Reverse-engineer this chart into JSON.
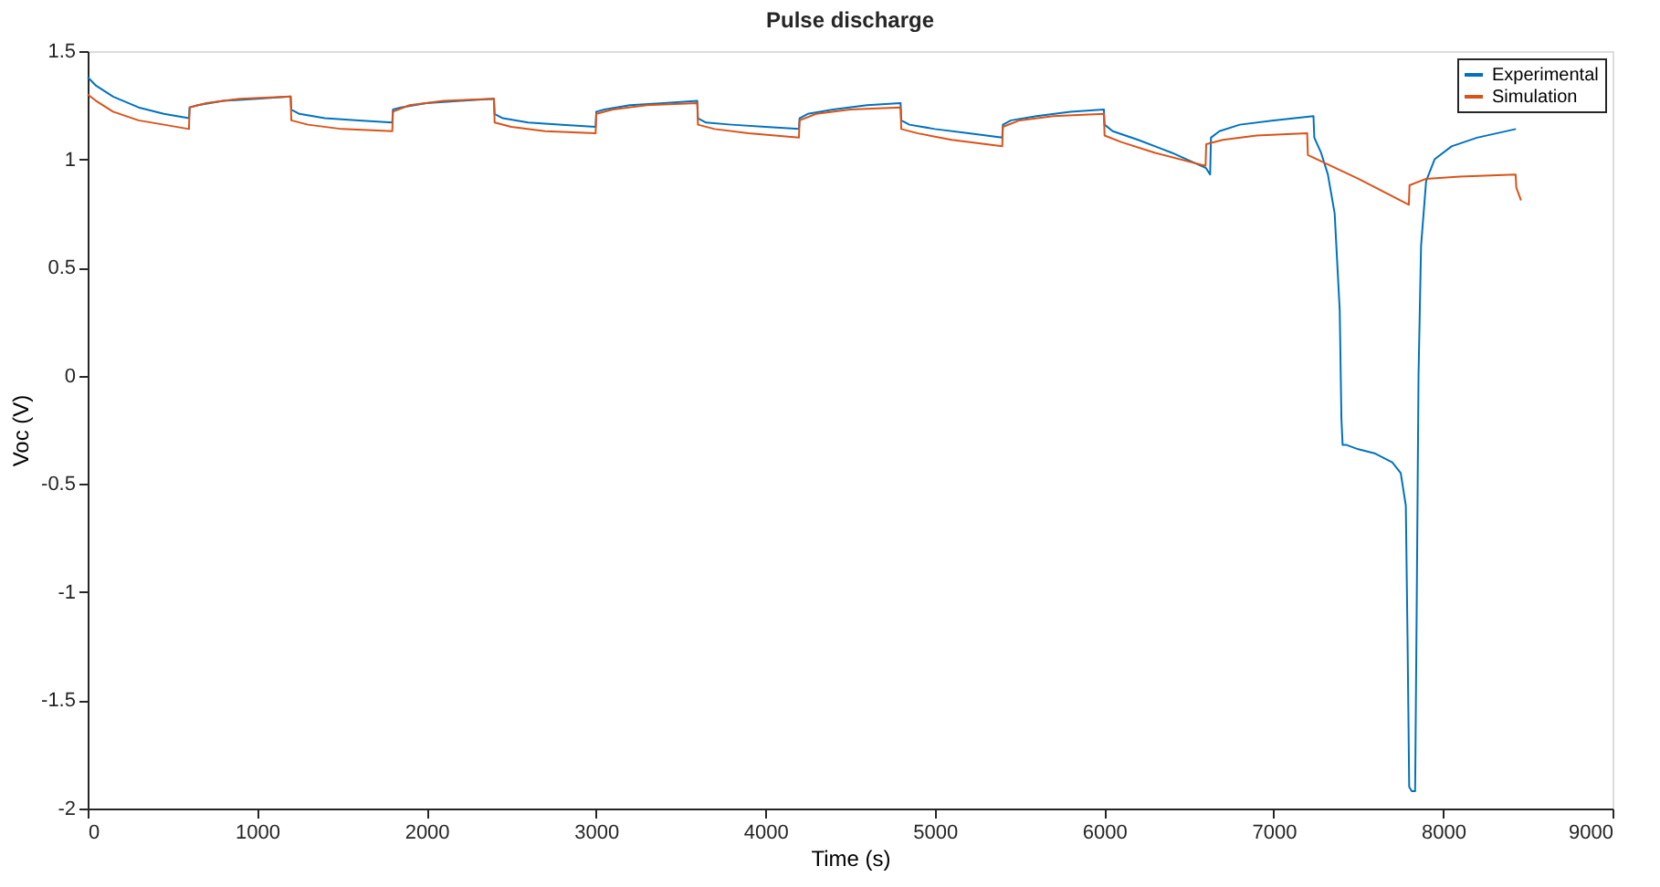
{
  "chart_data": {
    "type": "line",
    "title": "Pulse discharge",
    "xlabel": "Time (s)",
    "ylabel": "Voc (V)",
    "xlim": [
      0,
      9000
    ],
    "xticks": [
      0,
      1000,
      2000,
      3000,
      4000,
      5000,
      6000,
      7000,
      8000,
      9000
    ],
    "ylim": [
      -2,
      1.5
    ],
    "yticks": [
      -2,
      -1.5,
      -1,
      -0.5,
      0,
      0.5,
      1,
      1.5
    ],
    "grid": false,
    "legend": "top right",
    "line_style": "solid",
    "marker": "none",
    "series": [
      {
        "name": "Experimental",
        "color": "#0072bd",
        "x": [
          0,
          50,
          150,
          300,
          450,
          598,
          602,
          650,
          800,
          1000,
          1198,
          1202,
          1250,
          1400,
          1600,
          1798,
          1802,
          1850,
          2000,
          2200,
          2398,
          2402,
          2450,
          2600,
          2800,
          2998,
          3002,
          3050,
          3200,
          3400,
          3598,
          3602,
          3650,
          3800,
          4000,
          4198,
          4202,
          4250,
          4400,
          4600,
          4798,
          4802,
          4850,
          5000,
          5200,
          5398,
          5402,
          5450,
          5600,
          5800,
          5998,
          6002,
          6050,
          6200,
          6400,
          6600,
          6625,
          6630,
          6680,
          6800,
          7000,
          7235,
          7240,
          7280,
          7320,
          7360,
          7390,
          7400,
          7407,
          7430,
          7500,
          7600,
          7700,
          7750,
          7780,
          7790,
          7800,
          7815,
          7835,
          7845,
          7855,
          7870,
          7900,
          7950,
          8050,
          8200,
          8430
        ],
        "values": [
          1.38,
          1.34,
          1.29,
          1.24,
          1.21,
          1.19,
          1.24,
          1.25,
          1.27,
          1.28,
          1.29,
          1.23,
          1.21,
          1.19,
          1.18,
          1.17,
          1.23,
          1.24,
          1.26,
          1.27,
          1.28,
          1.21,
          1.19,
          1.17,
          1.16,
          1.15,
          1.22,
          1.23,
          1.25,
          1.26,
          1.27,
          1.19,
          1.17,
          1.16,
          1.15,
          1.14,
          1.19,
          1.21,
          1.23,
          1.25,
          1.26,
          1.18,
          1.16,
          1.14,
          1.12,
          1.1,
          1.16,
          1.18,
          1.2,
          1.22,
          1.23,
          1.16,
          1.13,
          1.09,
          1.03,
          0.96,
          0.93,
          1.1,
          1.13,
          1.16,
          1.18,
          1.2,
          1.1,
          1.03,
          0.93,
          0.75,
          0.3,
          -0.2,
          -0.32,
          -0.32,
          -0.34,
          -0.36,
          -0.4,
          -0.45,
          -0.6,
          -1.2,
          -1.9,
          -1.92,
          -1.92,
          -1.0,
          0.0,
          0.6,
          0.9,
          1.0,
          1.06,
          1.1,
          1.14
        ]
      },
      {
        "name": "Simulation",
        "color": "#d95319",
        "x": [
          0,
          50,
          150,
          300,
          450,
          598,
          602,
          700,
          900,
          1198,
          1202,
          1300,
          1500,
          1798,
          1802,
          1900,
          2100,
          2398,
          2402,
          2500,
          2700,
          2998,
          3002,
          3100,
          3300,
          3598,
          3602,
          3700,
          3900,
          4198,
          4202,
          4300,
          4500,
          4798,
          4802,
          4900,
          5100,
          5398,
          5402,
          5500,
          5700,
          5998,
          6002,
          6100,
          6300,
          6598,
          6602,
          6700,
          6900,
          7198,
          7202,
          7500,
          7798,
          7802,
          7900,
          8100,
          8428,
          8432,
          8460
        ],
        "values": [
          1.3,
          1.27,
          1.22,
          1.18,
          1.16,
          1.14,
          1.24,
          1.26,
          1.28,
          1.29,
          1.18,
          1.16,
          1.14,
          1.13,
          1.22,
          1.25,
          1.27,
          1.28,
          1.17,
          1.15,
          1.13,
          1.12,
          1.21,
          1.23,
          1.25,
          1.26,
          1.16,
          1.14,
          1.12,
          1.1,
          1.18,
          1.21,
          1.23,
          1.24,
          1.14,
          1.12,
          1.09,
          1.06,
          1.15,
          1.18,
          1.2,
          1.21,
          1.11,
          1.08,
          1.03,
          0.97,
          1.07,
          1.09,
          1.11,
          1.12,
          1.02,
          0.91,
          0.79,
          0.88,
          0.91,
          0.92,
          0.93,
          0.87,
          0.81
        ]
      }
    ]
  }
}
